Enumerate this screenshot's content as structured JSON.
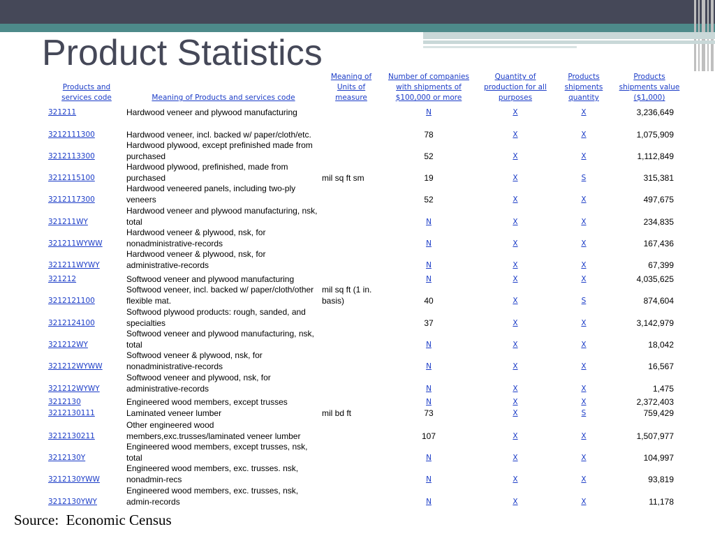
{
  "slide": {
    "title": "Product Statistics",
    "source": "Source:  Economic Census"
  },
  "table": {
    "headers": {
      "code": [
        "Products and",
        "services code"
      ],
      "meaning": [
        "Meaning of Products and services code"
      ],
      "units": [
        "Meaning of",
        "Units of",
        "measure"
      ],
      "companies": [
        "Number of companies",
        "with shipments of",
        "$100,000 or more"
      ],
      "quantity": [
        "Quantity of",
        "production for all",
        "purposes"
      ],
      "ship_qty": [
        "Products",
        "shipments",
        "quantity"
      ],
      "ship_val": [
        "Products",
        "shipments value",
        "($1,000)"
      ]
    },
    "rows": [
      {
        "code": "321211",
        "desc": "Hardwood veneer and plywood manufacturing",
        "unit": "",
        "companies": "N",
        "quantity": "X",
        "ship_qty": "X",
        "value": "3,236,649"
      },
      {
        "code": "3212111300",
        "desc": "Hardwood veneer, incl. backed w/ paper/cloth/etc.",
        "unit": "",
        "companies": "78",
        "quantity": "X",
        "ship_qty": "X",
        "value": "1,075,909"
      },
      {
        "code": "3212113300",
        "desc": "Hardwood plywood, except prefinished made from purchased",
        "unit": "",
        "companies": "52",
        "quantity": "X",
        "ship_qty": "X",
        "value": "1,112,849"
      },
      {
        "code": "3212115100",
        "desc": "Hardwood plywood, prefinished, made from purchased",
        "unit": "mil sq ft sm",
        "companies": "19",
        "quantity": "X",
        "ship_qty": "S",
        "value": "315,381"
      },
      {
        "code": "3212117300",
        "desc": "Hardwood veneered panels, including two-ply veneers",
        "unit": "",
        "companies": "52",
        "quantity": "X",
        "ship_qty": "X",
        "value": "497,675"
      },
      {
        "code": "321211WY",
        "desc": "Hardwood veneer and plywood manufacturing, nsk, total",
        "unit": "",
        "companies": "N",
        "quantity": "X",
        "ship_qty": "X",
        "value": "234,835"
      },
      {
        "code": "321211WYWW",
        "desc": "Hardwood veneer & plywood, nsk, for nonadministrative-records",
        "unit": "",
        "companies": "N",
        "quantity": "X",
        "ship_qty": "X",
        "value": "167,436"
      },
      {
        "code": "321211WYWY",
        "desc": "Hardwood veneer & plywood, nsk, for administrative-records",
        "unit": "",
        "companies": "N",
        "quantity": "X",
        "ship_qty": "X",
        "value": "67,399"
      },
      {
        "code": "321212",
        "desc": "Softwood veneer and plywood manufacturing",
        "unit": "",
        "companies": "N",
        "quantity": "X",
        "ship_qty": "X",
        "value": "4,035,625"
      },
      {
        "code": "3212121100",
        "desc": "Softwood veneer, incl. backed w/ paper/cloth/other flexible mat.",
        "unit": "mil sq ft (1 in. basis)",
        "companies": "40",
        "quantity": "X",
        "ship_qty": "S",
        "value": "874,604"
      },
      {
        "code": "3212124100",
        "desc": "Softwood plywood products: rough, sanded, and specialties",
        "unit": "",
        "companies": "37",
        "quantity": "X",
        "ship_qty": "X",
        "value": "3,142,979"
      },
      {
        "code": "321212WY",
        "desc": "Softwood veneer and plywood manufacturing, nsk, total",
        "unit": "",
        "companies": "N",
        "quantity": "X",
        "ship_qty": "X",
        "value": "18,042"
      },
      {
        "code": "321212WYWW",
        "desc": "Softwood veneer & plywood, nsk, for nonadministrative-records",
        "unit": "",
        "companies": "N",
        "quantity": "X",
        "ship_qty": "X",
        "value": "16,567"
      },
      {
        "code": "321212WYWY",
        "desc": "Softwood veneer and plywood, nsk, for administrative-records",
        "unit": "",
        "companies": "N",
        "quantity": "X",
        "ship_qty": "X",
        "value": "1,475"
      },
      {
        "code": "3212130",
        "desc": "Engineered wood members, except trusses",
        "unit": "",
        "companies": "N",
        "quantity": "X",
        "ship_qty": "X",
        "value": "2,372,403"
      },
      {
        "code": "3212130111",
        "desc": "Laminated veneer lumber",
        "unit": "mil bd ft",
        "companies": "73",
        "quantity": "X",
        "ship_qty": "S",
        "value": "759,429"
      },
      {
        "code": "3212130211",
        "desc": "Other engineered wood members,exc.trusses/laminated veneer lumber",
        "unit": "",
        "companies": "107",
        "quantity": "X",
        "ship_qty": "X",
        "value": "1,507,977"
      },
      {
        "code": "3212130Y",
        "desc": "Engineered wood members, except trusses, nsk, total",
        "unit": "",
        "companies": "N",
        "quantity": "X",
        "ship_qty": "X",
        "value": "104,997"
      },
      {
        "code": "3212130YWW",
        "desc": "Engineered wood members, exc. trusses. nsk, nonadmin-recs",
        "unit": "",
        "companies": "N",
        "quantity": "X",
        "ship_qty": "X",
        "value": "93,819"
      },
      {
        "code": "3212130YWY",
        "desc": "Engineered wood members, exc. trusses, nsk, admin-records",
        "unit": "",
        "companies": "N",
        "quantity": "X",
        "ship_qty": "X",
        "value": "11,178"
      }
    ]
  }
}
